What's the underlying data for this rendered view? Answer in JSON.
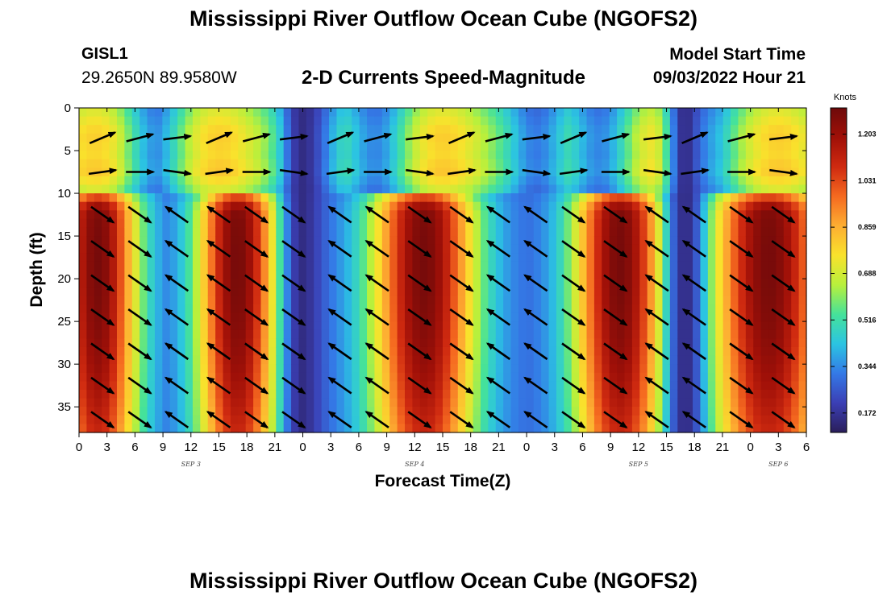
{
  "header": {
    "title": "Mississippi River Outflow Ocean Cube (NGOFS2)",
    "station": "GISL1",
    "coords": "29.2650N  89.9580W",
    "panel_title": "2-D Currents Speed-Magnitude",
    "model_start_label": "Model Start Time",
    "model_start_value": "09/03/2022 Hour 21"
  },
  "footer": {
    "title": "Mississippi River Outflow Ocean Cube (NGOFS2)"
  },
  "chart_data": {
    "type": "heatmap",
    "xlabel": "Forecast Time(Z)",
    "ylabel": "Depth (ft)",
    "x_start_hour": 0,
    "x_end_hour": 78,
    "x_tick_labels": [
      "0",
      "3",
      "6",
      "9",
      "12",
      "15",
      "18",
      "21",
      "0",
      "3",
      "6",
      "9",
      "12",
      "15",
      "18",
      "21",
      "0",
      "3",
      "6",
      "9",
      "12",
      "15",
      "18",
      "21",
      "0",
      "3",
      "6"
    ],
    "day_labels": [
      {
        "text": "SEP 3",
        "hour": 12
      },
      {
        "text": "SEP 4",
        "hour": 36
      },
      {
        "text": "SEP 5",
        "hour": 60
      },
      {
        "text": "SEP 6",
        "hour": 75
      }
    ],
    "ylim": [
      38,
      0
    ],
    "y_ticks": [
      0,
      5,
      10,
      15,
      20,
      25,
      30,
      35
    ],
    "colorbar": {
      "unit": "Knots",
      "range": [
        0.1,
        1.3
      ],
      "ticks": [
        "1.203",
        "1.031",
        "0.859",
        "0.688",
        "0.516",
        "0.344",
        "0.172"
      ],
      "tick_values": [
        1.203,
        1.031,
        0.859,
        0.688,
        0.516,
        0.344,
        0.172
      ],
      "colormap": [
        "#2a1e5a",
        "#3b3fb5",
        "#3479e6",
        "#2bc4e2",
        "#45e29a",
        "#b8f03c",
        "#f9e22c",
        "#fdae32",
        "#f56a20",
        "#cf2a10",
        "#a01008",
        "#6e0a0a"
      ]
    },
    "upper_layer_depth": 10,
    "surface_peak_hours": [
      2,
      15,
      39,
      63,
      75
    ],
    "surface_min_hours": [
      8,
      25,
      32,
      49,
      56,
      67
    ],
    "surface_max_speed": 0.8,
    "surface_min_speed": 0.3,
    "deep_peak_hours": [
      2,
      17,
      37,
      58,
      74
    ],
    "deep_peak_widths": [
      7,
      7,
      9,
      8,
      10
    ],
    "deep_max_speed": 1.28,
    "deep_min_speed": 0.28,
    "slack_hours": [
      24,
      65
    ],
    "slack_speed": 0.15,
    "vector_hours": [
      2.5,
      6.5,
      10.5,
      15,
      19,
      23,
      28,
      32,
      36.5,
      41,
      45,
      49,
      53,
      57.5,
      62,
      66,
      71,
      75.5
    ],
    "vector_depths": [
      3.5,
      7.5,
      12.5,
      16.5,
      20.5,
      24.5,
      28.5,
      32.5,
      36.5
    ]
  }
}
